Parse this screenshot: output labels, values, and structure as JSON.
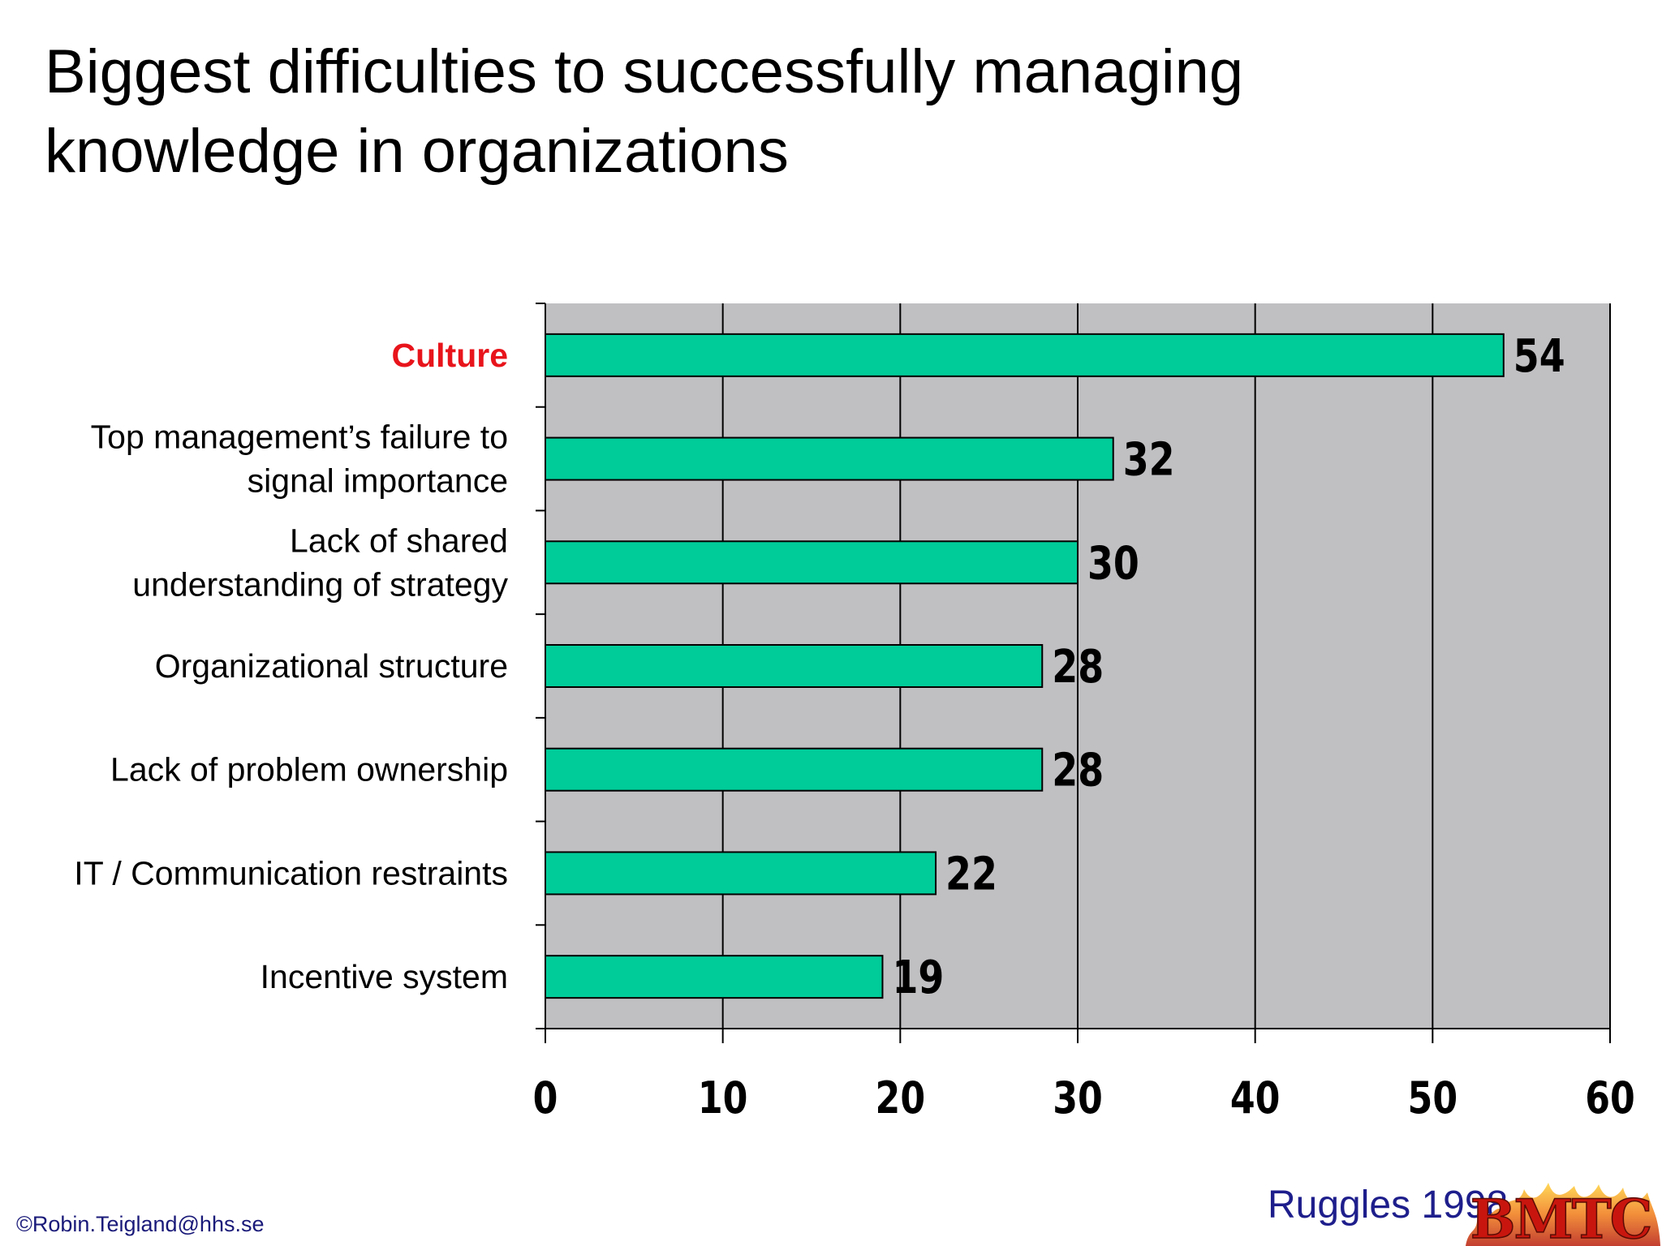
{
  "title_lines": [
    "Biggest difficulties to successfully managing",
    "knowledge in organizations"
  ],
  "chart_data": {
    "type": "bar",
    "orientation": "horizontal",
    "title": "Biggest difficulties to successfully managing knowledge in organizations",
    "categories": [
      "Culture",
      "Top management’s failure to signal importance",
      "Lack of shared understanding of strategy",
      "Organizational structure",
      "Lack of problem ownership",
      "IT / Communication restraints",
      "Incentive system"
    ],
    "category_lines": [
      [
        "Culture"
      ],
      [
        "Top management’s failure to",
        "signal importance"
      ],
      [
        "Lack of shared",
        "understanding of strategy"
      ],
      [
        "Organizational structure"
      ],
      [
        "Lack of problem ownership"
      ],
      [
        "IT / Communication restraints"
      ],
      [
        "Incentive system"
      ]
    ],
    "values": [
      54,
      32,
      30,
      28,
      28,
      22,
      19
    ],
    "highlight_category": "Culture",
    "xlim": [
      0,
      60
    ],
    "xticks": [
      0,
      10,
      20,
      30,
      40,
      50,
      60
    ],
    "xlabel": "",
    "ylabel": "",
    "grid": true,
    "legend": "none",
    "colors": {
      "bar": "#00cc99",
      "plot_background": "#c0bfc2",
      "highlight_label": "#e8141b"
    }
  },
  "footer": {
    "copyright": "©Robin.Teigland@hhs.se",
    "source": "Ruggles 1998",
    "logo_text": "BMTC"
  }
}
